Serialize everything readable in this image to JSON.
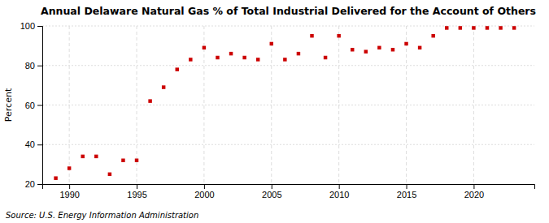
{
  "chart_data": {
    "type": "scatter",
    "title": "Annual Delaware Natural Gas % of Total Industrial Delivered for the Account of Others",
    "ylabel": "Percent",
    "source": "Source: U.S. Energy Information Administration",
    "x": [
      1989,
      1990,
      1991,
      1992,
      1993,
      1994,
      1995,
      1996,
      1997,
      1998,
      1999,
      2000,
      2001,
      2002,
      2003,
      2004,
      2005,
      2006,
      2007,
      2008,
      2009,
      2010,
      2011,
      2012,
      2013,
      2014,
      2015,
      2016,
      2017,
      2018,
      2019,
      2020,
      2021,
      2022,
      2023
    ],
    "values": [
      23,
      28,
      34,
      34,
      25,
      32,
      32,
      62,
      69,
      78,
      83,
      89,
      84,
      86,
      84,
      83,
      91,
      83,
      86,
      95,
      84,
      95,
      88,
      87,
      89,
      88,
      91,
      89,
      95,
      99,
      99,
      99,
      99,
      99,
      99
    ],
    "color": "#cc0000",
    "marker": "square",
    "xlim": [
      1988.0,
      2024.5
    ],
    "ylim": [
      20,
      100
    ],
    "xticks": [
      1990,
      1995,
      2000,
      2005,
      2010,
      2015,
      2020
    ],
    "yticks": [
      20,
      40,
      60,
      80,
      100
    ],
    "grid": true
  }
}
